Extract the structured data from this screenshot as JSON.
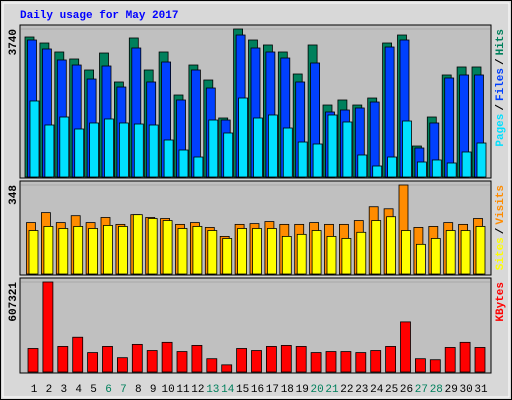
{
  "chart_data": [
    {
      "type": "bar",
      "title": "Daily usage for May 2017",
      "title_color": "#0000ff",
      "legend_separator": "/",
      "series": [
        {
          "name": "Pages",
          "color": "#00e0ff",
          "values": [
            1921,
            1314,
            1516,
            1213,
            1365,
            1466,
            1365,
            1339,
            1314,
            935,
            682,
            505,
            1440,
            1112,
            1996,
            1491,
            1567,
            1238,
            884,
            834,
            1567,
            1390,
            556,
            278,
            505,
            1415,
            379,
            430,
            354,
            632,
            859
          ]
        },
        {
          "name": "Files",
          "color": "#0040ff",
          "values": [
            3462,
            3235,
            2957,
            2830,
            2476,
            2805,
            2274,
            3260,
            2401,
            2906,
            1946,
            2704,
            2249,
            1440,
            3588,
            3260,
            3159,
            3007,
            2401,
            2881,
            1643,
            1693,
            1744,
            1895,
            3285,
            3462,
            733,
            1365,
            2502,
            2578,
            2578
          ]
        },
        {
          "name": "Hits",
          "color": "#00805c",
          "values": [
            3538,
            3386,
            3159,
            2982,
            2704,
            3133,
            2401,
            3513,
            2704,
            3159,
            2072,
            2830,
            2451,
            1491,
            3740,
            3462,
            3336,
            3159,
            2603,
            3336,
            1819,
            1946,
            1819,
            1996,
            3386,
            3588,
            783,
            1516,
            2578,
            2780,
            2780
          ]
        }
      ],
      "ylim": [
        0,
        3740
      ],
      "yticks": [
        3740
      ]
    },
    {
      "type": "bar",
      "legend_separator": "/",
      "series": [
        {
          "name": "Sites",
          "color": "#ffff00",
          "values": [
            170,
            186,
            178,
            186,
            178,
            190,
            186,
            232,
            217,
            209,
            178,
            186,
            170,
            139,
            178,
            178,
            178,
            147,
            155,
            170,
            147,
            139,
            163,
            209,
            224,
            170,
            116,
            139,
            170,
            170,
            186
          ]
        },
        {
          "name": "Visits",
          "color": "#ff8c00",
          "values": [
            201,
            240,
            201,
            228,
            201,
            221,
            194,
            232,
            221,
            217,
            194,
            201,
            182,
            147,
            194,
            197,
            205,
            194,
            194,
            201,
            194,
            194,
            209,
            263,
            255,
            348,
            182,
            186,
            201,
            194,
            217
          ]
        }
      ],
      "ylim": [
        0,
        348
      ],
      "yticks": [
        348
      ]
    },
    {
      "type": "bar",
      "categories": [
        "1",
        "2",
        "3",
        "4",
        "5",
        "6",
        "7",
        "8",
        "9",
        "10",
        "11",
        "12",
        "13",
        "14",
        "15",
        "16",
        "17",
        "18",
        "19",
        "20",
        "21",
        "22",
        "23",
        "24",
        "25",
        "26",
        "27",
        "28",
        "29",
        "30",
        "31"
      ],
      "category_colors": [
        "#000000",
        "#000000",
        "#000000",
        "#000000",
        "#000000",
        "#00805c",
        "#00805c",
        "#000000",
        "#000000",
        "#000000",
        "#000000",
        "#000000",
        "#00805c",
        "#00805c",
        "#000000",
        "#000000",
        "#000000",
        "#000000",
        "#000000",
        "#00805c",
        "#00805c",
        "#000000",
        "#000000",
        "#000000",
        "#000000",
        "#000000",
        "#00805c",
        "#00805c",
        "#000000",
        "#000000",
        "#000000"
      ],
      "series": [
        {
          "name": "KBytes",
          "color": "#ff0000",
          "values": [
            158723,
            607321,
            172525,
            234634,
            131119,
            172525,
            96614,
            186327,
            144921,
            200129,
            138020,
            179426,
            89713,
            48307,
            158723,
            144921,
            172525,
            179426,
            172525,
            131119,
            138020,
            138020,
            131119,
            144921,
            172525,
            338149,
            89713,
            82812,
            165624,
            200129,
            165624
          ]
        }
      ],
      "ylim": [
        0,
        607321
      ],
      "yticks": [
        607321
      ]
    }
  ]
}
